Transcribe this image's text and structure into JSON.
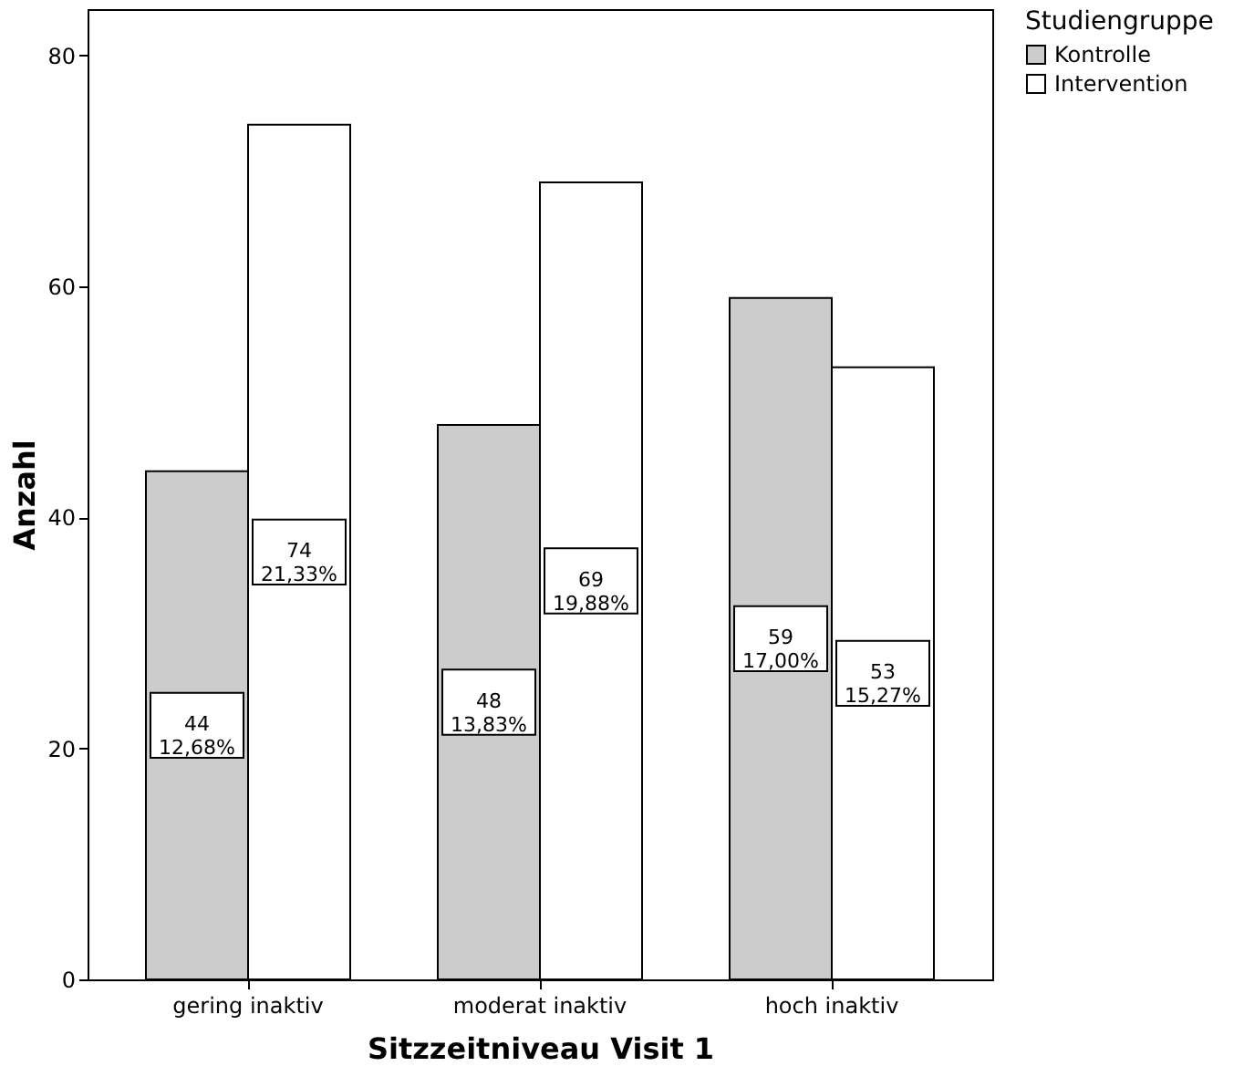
{
  "chart_data": {
    "type": "bar",
    "xlabel": "Sitzzeitniveau Visit 1",
    "ylabel": "Anzahl",
    "legend_title": "Studiengruppe",
    "categories": [
      "gering inaktiv",
      "moderat inaktiv",
      "hoch inaktiv"
    ],
    "series": [
      {
        "name": "Kontrolle",
        "color": "#cccccc",
        "values": [
          44,
          48,
          59
        ],
        "value_labels": [
          "44\n12,68%",
          "48\n13,83%",
          "59\n17,00%"
        ]
      },
      {
        "name": "Intervention",
        "color": "#ffffff",
        "values": [
          74,
          69,
          53
        ],
        "value_labels": [
          "74\n21,33%",
          "69\n19,88%",
          "53\n15,27%"
        ]
      }
    ],
    "ylim": [
      0,
      84
    ],
    "yticks": [
      0,
      20,
      40,
      60,
      80
    ],
    "grid": false,
    "legend": "top right"
  }
}
